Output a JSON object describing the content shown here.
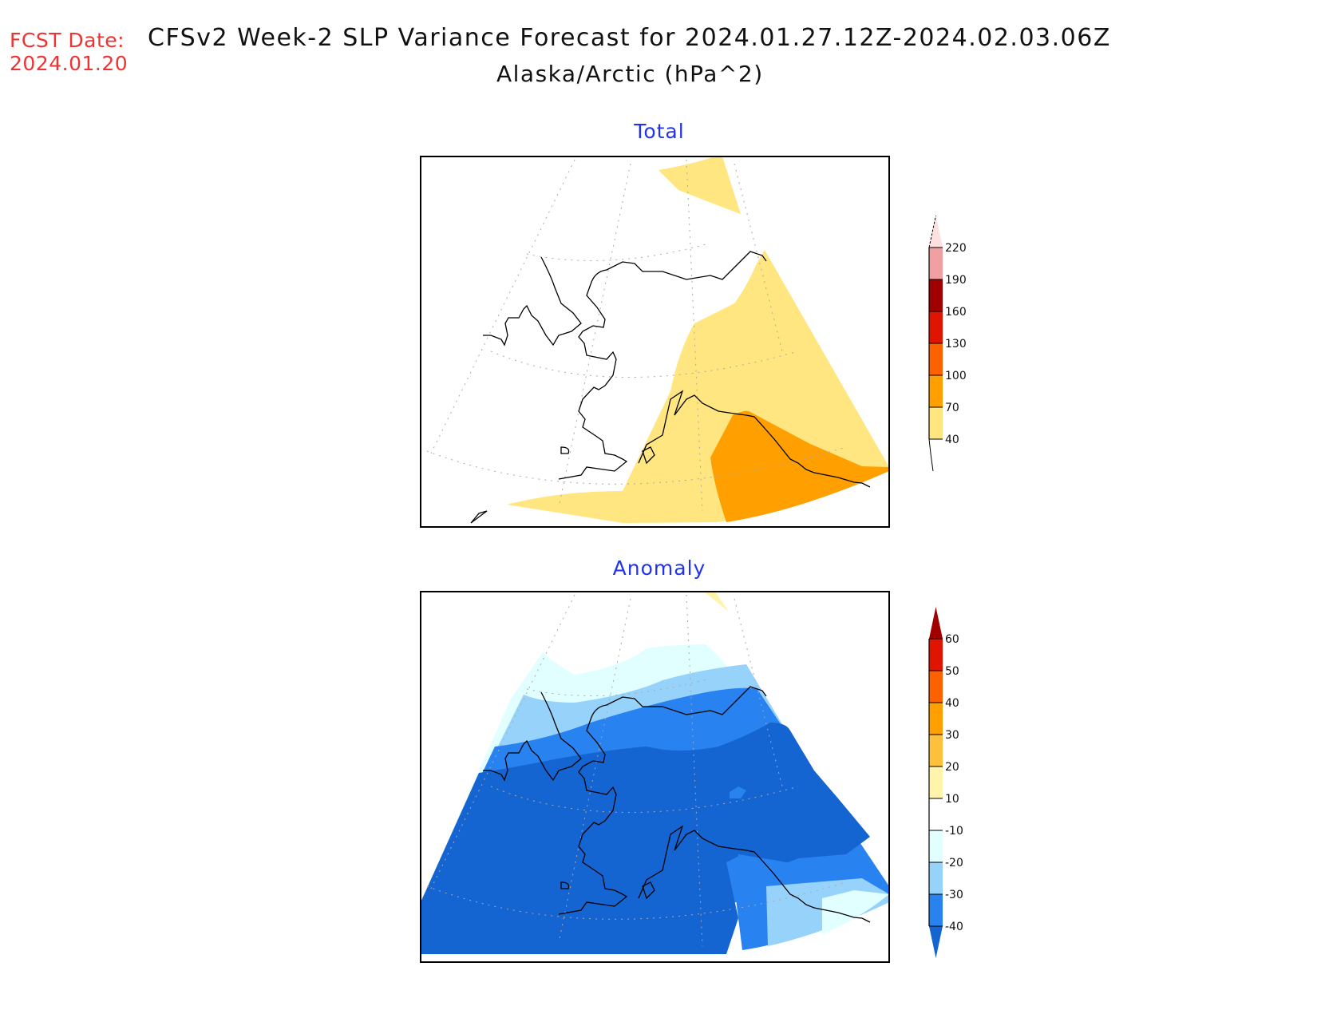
{
  "header": {
    "fcst_label": "FCST Date:",
    "fcst_date": "2024.01.20",
    "title": "CFSv2 Week-2 SLP Variance Forecast for 2024.01.27.12Z-2024.02.03.06Z",
    "subtitle": "Alaska/Arctic (hPa^2)"
  },
  "panels": [
    {
      "title": "Total",
      "colorbar": {
        "levels": [
          "40",
          "70",
          "100",
          "130",
          "160",
          "190",
          "220"
        ],
        "colors": [
          "#ffe680",
          "#ffa000",
          "#ff6000",
          "#e01400",
          "#a00000",
          "#f0a0a0",
          "#fde0e0"
        ],
        "extend": "both"
      }
    },
    {
      "title": "Anomaly",
      "colorbar": {
        "levels": [
          "-40",
          "-30",
          "-20",
          "-10",
          "10",
          "20",
          "30",
          "40",
          "50",
          "60"
        ],
        "colors": [
          "#1464d2",
          "#2882f0",
          "#96d2fa",
          "#e1ffff",
          "#ffffff",
          "#fff5aa",
          "#ffc03c",
          "#ffa000",
          "#ff6000",
          "#e01400",
          "#a00000"
        ],
        "extend": "both"
      }
    }
  ]
}
